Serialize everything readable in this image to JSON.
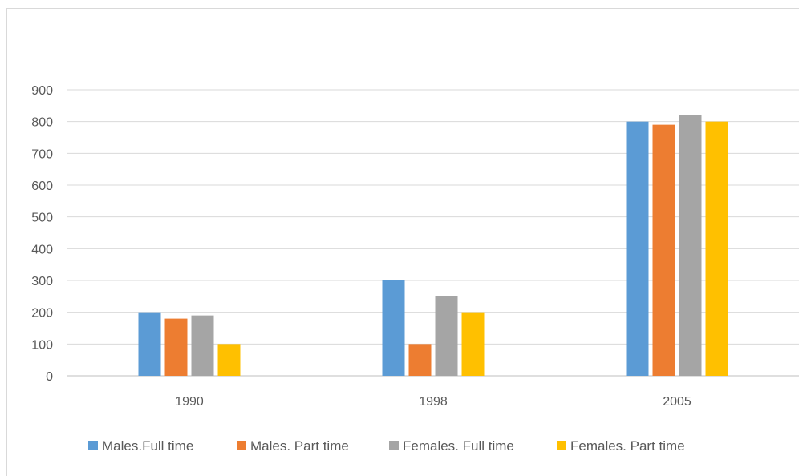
{
  "chart_data": {
    "type": "bar",
    "title": "",
    "xlabel": "",
    "ylabel": "",
    "categories": [
      "1990",
      "1998",
      "2005"
    ],
    "series": [
      {
        "name": "Males.Full time",
        "color": "#5b9bd5",
        "values": [
          200,
          300,
          800
        ]
      },
      {
        "name": "Males. Part time",
        "color": "#ed7d31",
        "values": [
          180,
          100,
          790
        ]
      },
      {
        "name": "Females. Full time",
        "color": "#a5a5a5",
        "values": [
          190,
          250,
          820
        ]
      },
      {
        "name": "Females. Part time",
        "color": "#ffc000",
        "values": [
          100,
          200,
          800
        ]
      }
    ],
    "ylim": [
      0,
      900
    ],
    "y_ticks": [
      0,
      100,
      200,
      300,
      400,
      500,
      600,
      700,
      800,
      900
    ],
    "grid": true,
    "legend_position": "bottom"
  }
}
